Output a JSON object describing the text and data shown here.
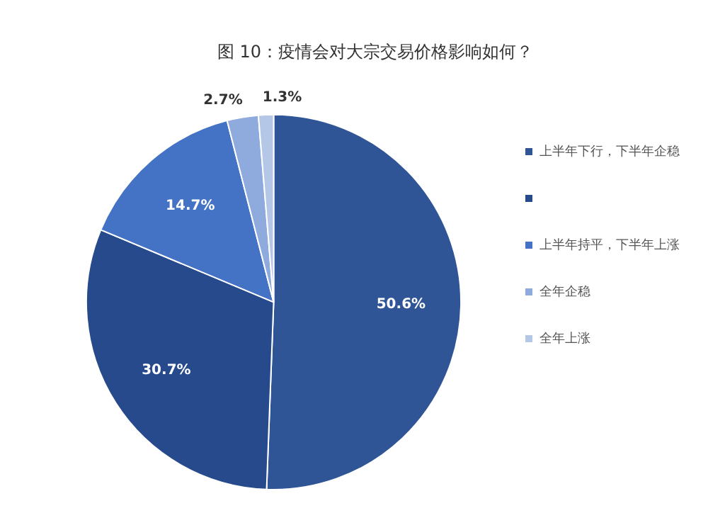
{
  "chart_data": {
    "type": "pie",
    "title": "图 10：疫情会对大宗交易价格影响如何？",
    "categories": [
      "上半年下行，下半年企稳",
      null,
      "上半年持平，下半年上涨",
      "全年企稳",
      "全年上涨"
    ],
    "values": [
      50.6,
      30.7,
      14.7,
      2.7,
      1.3
    ],
    "colors": [
      "#2f5597",
      "#264a8c",
      "#4472c4",
      "#8faadc",
      "#b4c7e7"
    ],
    "value_labels": [
      "50.6%",
      "30.7%",
      "14.7%",
      "2.7%",
      "1.3%"
    ],
    "legend": "right"
  }
}
